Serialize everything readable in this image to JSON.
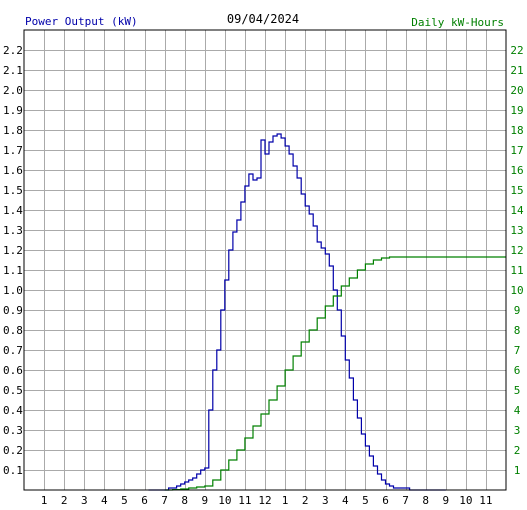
{
  "chart_data": {
    "type": "line",
    "title": "09/04/2024",
    "left_axis_label": "Power Output (kW)",
    "right_axis_label": "Daily kW-Hours",
    "x_tick_labels": [
      "1",
      "2",
      "3",
      "4",
      "5",
      "6",
      "7",
      "8",
      "9",
      "10",
      "11",
      "12",
      "1",
      "2",
      "3",
      "4",
      "5",
      "6",
      "7",
      "8",
      "9",
      "10",
      "11"
    ],
    "left_ylim": [
      0,
      2.3
    ],
    "left_y_ticks": [
      "0.1",
      "0.2",
      "0.3",
      "0.4",
      "0.5",
      "0.6",
      "0.7",
      "0.8",
      "0.9",
      "1.0",
      "1.1",
      "1.2",
      "1.3",
      "1.4",
      "1.5",
      "1.6",
      "1.7",
      "1.8",
      "1.9",
      "2.0",
      "2.1",
      "2.2"
    ],
    "right_ylim": [
      0,
      23
    ],
    "right_y_ticks": [
      "1",
      "2",
      "3",
      "4",
      "5",
      "6",
      "7",
      "8",
      "9",
      "10",
      "11",
      "12",
      "13",
      "14",
      "15",
      "16",
      "17",
      "18",
      "19",
      "20",
      "21",
      "22"
    ],
    "xlim_hours": [
      0,
      24
    ],
    "grid": true,
    "colors": {
      "power": "#0000aa",
      "energy": "#008000",
      "left_axis_text": "#0000aa",
      "right_axis_text": "#008000",
      "grid": "#aaaaaa"
    },
    "series": [
      {
        "name": "Power Output (kW)",
        "axis": "left",
        "step": true,
        "x_hours": [
          6.2,
          6.4,
          6.6,
          6.8,
          7.0,
          7.2,
          7.4,
          7.6,
          7.8,
          8.0,
          8.2,
          8.4,
          8.6,
          8.8,
          9.0,
          9.2,
          9.4,
          9.6,
          9.8,
          10.0,
          10.2,
          10.4,
          10.6,
          10.8,
          11.0,
          11.2,
          11.4,
          11.6,
          11.8,
          12.0,
          12.2,
          12.4,
          12.6,
          12.8,
          13.0,
          13.2,
          13.4,
          13.6,
          13.8,
          14.0,
          14.2,
          14.4,
          14.6,
          14.8,
          15.0,
          15.2,
          15.4,
          15.6,
          15.8,
          16.0,
          16.2,
          16.4,
          16.6,
          16.8,
          17.0,
          17.2,
          17.4,
          17.6,
          17.8,
          18.0,
          18.2,
          18.4,
          18.6,
          18.8,
          19.0,
          19.2,
          19.4,
          19.6,
          19.8,
          20.0,
          20.2,
          20.4,
          20.6,
          20.8,
          21.0
        ],
        "values": [
          0.0,
          0.0,
          0.0,
          0.0,
          0.0,
          0.01,
          0.01,
          0.02,
          0.03,
          0.04,
          0.05,
          0.06,
          0.08,
          0.1,
          0.11,
          0.4,
          0.6,
          0.7,
          0.9,
          1.05,
          1.2,
          1.29,
          1.35,
          1.44,
          1.52,
          1.58,
          1.55,
          1.56,
          1.75,
          1.68,
          1.74,
          1.77,
          1.78,
          1.76,
          1.72,
          1.68,
          1.62,
          1.56,
          1.48,
          1.42,
          1.38,
          1.32,
          1.24,
          1.21,
          1.18,
          1.12,
          1.0,
          0.9,
          0.77,
          0.65,
          0.56,
          0.45,
          0.36,
          0.28,
          0.22,
          0.17,
          0.12,
          0.08,
          0.05,
          0.03,
          0.02,
          0.01,
          0.01,
          0.01,
          0.01,
          0.0,
          0.0,
          0.0,
          0.0,
          0.0,
          0.0,
          0.0,
          0.0,
          0.0,
          0.0
        ]
      },
      {
        "name": "Daily kW-Hours",
        "axis": "right",
        "step": true,
        "x_hours": [
          7.0,
          7.4,
          7.8,
          8.2,
          8.6,
          9.0,
          9.4,
          9.8,
          10.2,
          10.6,
          11.0,
          11.4,
          11.8,
          12.2,
          12.6,
          13.0,
          13.4,
          13.8,
          14.2,
          14.6,
          15.0,
          15.4,
          15.8,
          16.2,
          16.6,
          17.0,
          17.4,
          17.8,
          18.2,
          18.6,
          19.0,
          19.4,
          19.8,
          20.0,
          20.4,
          21.0,
          22.0,
          23.0,
          24.0
        ],
        "values": [
          0.0,
          0.02,
          0.05,
          0.1,
          0.15,
          0.2,
          0.5,
          1.0,
          1.5,
          2.0,
          2.6,
          3.2,
          3.8,
          4.5,
          5.2,
          6.0,
          6.7,
          7.4,
          8.0,
          8.6,
          9.2,
          9.7,
          10.2,
          10.6,
          11.0,
          11.3,
          11.5,
          11.6,
          11.65,
          11.65,
          11.65,
          11.65,
          11.65,
          11.65,
          11.65,
          11.65,
          11.65,
          11.65,
          11.65
        ]
      }
    ]
  }
}
